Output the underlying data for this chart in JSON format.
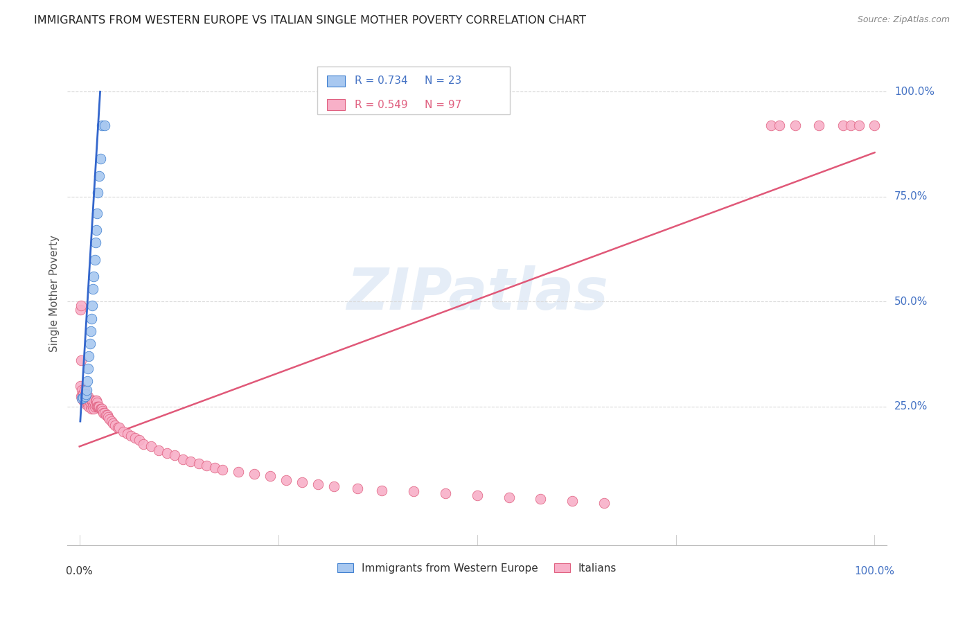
{
  "title": "IMMIGRANTS FROM WESTERN EUROPE VS ITALIAN SINGLE MOTHER POVERTY CORRELATION CHART",
  "source": "Source: ZipAtlas.com",
  "ylabel": "Single Mother Poverty",
  "legend_blue_r": "R = 0.734",
  "legend_blue_n": "N = 23",
  "legend_pink_r": "R = 0.549",
  "legend_pink_n": "N = 97",
  "legend_blue_label": "Immigrants from Western Europe",
  "legend_pink_label": "Italians",
  "watermark": "ZIPatlas",
  "background_color": "#ffffff",
  "blue_fill": "#a8c8f0",
  "blue_edge": "#4080d0",
  "pink_fill": "#f8b0c8",
  "pink_edge": "#e06080",
  "pink_line_color": "#e05878",
  "blue_line_color": "#3366cc",
  "title_color": "#222222",
  "source_color": "#888888",
  "grid_color": "#d8d8d8",
  "blue_dots_x": [
    0.003,
    0.005,
    0.007,
    0.008,
    0.009,
    0.01,
    0.011,
    0.012,
    0.013,
    0.014,
    0.015,
    0.016,
    0.017,
    0.018,
    0.019,
    0.02,
    0.021,
    0.022,
    0.023,
    0.025,
    0.026,
    0.028,
    0.032
  ],
  "blue_dots_y": [
    0.27,
    0.272,
    0.275,
    0.28,
    0.29,
    0.31,
    0.34,
    0.37,
    0.4,
    0.43,
    0.46,
    0.49,
    0.53,
    0.56,
    0.6,
    0.64,
    0.67,
    0.71,
    0.76,
    0.8,
    0.84,
    0.92,
    0.92
  ],
  "blue_line_x": [
    0.001,
    0.026
  ],
  "blue_line_y": [
    0.215,
    1.0
  ],
  "pink_line_x": [
    0.0,
    1.0
  ],
  "pink_line_y": [
    0.155,
    0.855
  ],
  "pink_dots_x": [
    0.001,
    0.001,
    0.002,
    0.002,
    0.003,
    0.003,
    0.004,
    0.004,
    0.005,
    0.005,
    0.006,
    0.006,
    0.007,
    0.007,
    0.008,
    0.008,
    0.009,
    0.009,
    0.01,
    0.01,
    0.011,
    0.011,
    0.012,
    0.012,
    0.013,
    0.014,
    0.015,
    0.015,
    0.016,
    0.017,
    0.018,
    0.018,
    0.019,
    0.02,
    0.02,
    0.021,
    0.022,
    0.022,
    0.023,
    0.024,
    0.025,
    0.026,
    0.027,
    0.028,
    0.029,
    0.03,
    0.032,
    0.033,
    0.035,
    0.036,
    0.038,
    0.04,
    0.042,
    0.045,
    0.048,
    0.05,
    0.055,
    0.06,
    0.065,
    0.07,
    0.075,
    0.08,
    0.09,
    0.1,
    0.11,
    0.12,
    0.13,
    0.14,
    0.15,
    0.16,
    0.17,
    0.18,
    0.2,
    0.22,
    0.24,
    0.26,
    0.28,
    0.3,
    0.32,
    0.35,
    0.38,
    0.42,
    0.46,
    0.5,
    0.54,
    0.58,
    0.62,
    0.66,
    0.87,
    0.88,
    0.9,
    0.93,
    0.96,
    0.97,
    0.98,
    1.0,
    0.002
  ],
  "pink_dots_y": [
    0.48,
    0.3,
    0.36,
    0.275,
    0.29,
    0.27,
    0.28,
    0.27,
    0.28,
    0.265,
    0.29,
    0.265,
    0.28,
    0.26,
    0.275,
    0.26,
    0.275,
    0.255,
    0.27,
    0.26,
    0.275,
    0.255,
    0.265,
    0.25,
    0.26,
    0.25,
    0.265,
    0.245,
    0.265,
    0.25,
    0.265,
    0.245,
    0.25,
    0.265,
    0.255,
    0.265,
    0.26,
    0.25,
    0.25,
    0.25,
    0.25,
    0.245,
    0.245,
    0.245,
    0.24,
    0.235,
    0.235,
    0.23,
    0.23,
    0.225,
    0.22,
    0.215,
    0.21,
    0.205,
    0.2,
    0.2,
    0.19,
    0.185,
    0.18,
    0.175,
    0.17,
    0.16,
    0.155,
    0.145,
    0.14,
    0.135,
    0.125,
    0.12,
    0.115,
    0.11,
    0.105,
    0.1,
    0.095,
    0.09,
    0.085,
    0.075,
    0.07,
    0.065,
    0.06,
    0.055,
    0.05,
    0.048,
    0.043,
    0.038,
    0.033,
    0.03,
    0.025,
    0.02,
    0.92,
    0.92,
    0.92,
    0.92,
    0.92,
    0.92,
    0.92,
    0.92,
    0.49
  ],
  "xlim": [
    -0.015,
    1.015
  ],
  "ylim": [
    -0.08,
    1.12
  ],
  "yticks": [
    0.25,
    0.5,
    0.75,
    1.0
  ],
  "ytick_labels": [
    "25.0%",
    "50.0%",
    "75.0%",
    "100.0%"
  ]
}
